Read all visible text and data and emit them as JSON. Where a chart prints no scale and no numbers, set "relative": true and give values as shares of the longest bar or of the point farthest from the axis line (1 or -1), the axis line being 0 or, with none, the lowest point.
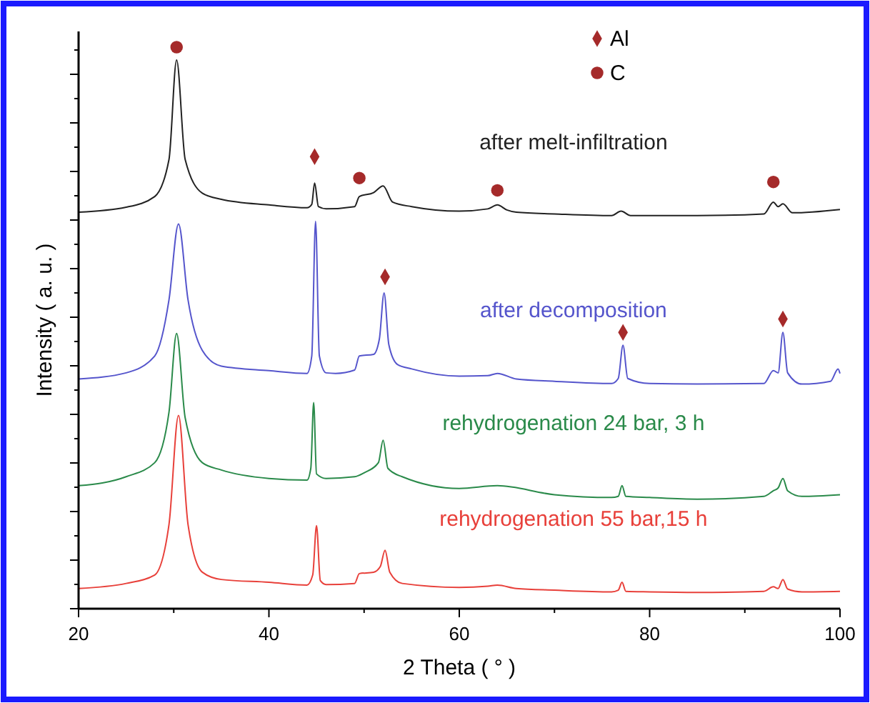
{
  "chart_data": {
    "type": "line",
    "relative": true,
    "xlabel": "2 Theta ( ° )",
    "ylabel": "Intensity ( a. u. )",
    "xlim": [
      20,
      100
    ],
    "xticks": [
      20,
      40,
      60,
      80,
      100
    ],
    "tick_labels": "x",
    "grid": false,
    "legend": "top right",
    "marker": "none",
    "line_style": "solid",
    "series": [
      {
        "name": "after melt-infiltration",
        "color": "#222222",
        "x": [
          20,
          25,
          28,
          29.5,
          30.3,
          31.2,
          33,
          35,
          40,
          44,
          44.5,
          44.8,
          45.2,
          46,
          49,
          49.5,
          51,
          52,
          53,
          55,
          60,
          63,
          64,
          65,
          66,
          70,
          76,
          77,
          78,
          85,
          92,
          93,
          93.5,
          94,
          95,
          100
        ],
        "values": [
          0.706,
          0.715,
          0.734,
          0.8,
          0.977,
          0.8,
          0.74,
          0.729,
          0.719,
          0.714,
          0.72,
          0.758,
          0.716,
          0.712,
          0.716,
          0.734,
          0.741,
          0.753,
          0.724,
          0.716,
          0.708,
          0.712,
          0.719,
          0.71,
          0.706,
          0.703,
          0.7,
          0.708,
          0.7,
          0.7,
          0.703,
          0.724,
          0.716,
          0.721,
          0.705,
          0.711
        ]
      },
      {
        "name": "after decomposition",
        "color": "#5555cc",
        "x": [
          20,
          25,
          28,
          29.5,
          30.5,
          31.5,
          33,
          35,
          40,
          44,
          44.5,
          44.9,
          45.3,
          46,
          47,
          49,
          49.5,
          51,
          51.6,
          52.1,
          52.6,
          53.5,
          55,
          60,
          63,
          64,
          66,
          70,
          76,
          76.7,
          77.2,
          77.7,
          80,
          85,
          92,
          93,
          93.5,
          94,
          94.5,
          96,
          99,
          99.8,
          100
        ],
        "values": [
          0.409,
          0.42,
          0.45,
          0.55,
          0.685,
          0.55,
          0.46,
          0.432,
          0.424,
          0.419,
          0.45,
          0.69,
          0.45,
          0.42,
          0.419,
          0.425,
          0.45,
          0.453,
          0.48,
          0.5625,
          0.47,
          0.435,
          0.427,
          0.414,
          0.415,
          0.419,
          0.409,
          0.405,
          0.401,
          0.41,
          0.469,
          0.41,
          0.401,
          0.4,
          0.401,
          0.424,
          0.42,
          0.492,
          0.42,
          0.4,
          0.405,
          0.427,
          0.419
        ]
      },
      {
        "name": "rehydrogenation 24 bar, 3 h",
        "color": "#2a8a4a",
        "x": [
          20,
          25,
          28,
          29.5,
          30.3,
          31.2,
          33,
          35,
          40,
          44,
          44.4,
          44.7,
          45,
          46,
          49,
          50,
          51.5,
          52,
          52.5,
          54,
          60,
          64,
          70,
          76,
          76.7,
          77.1,
          77.5,
          80,
          85,
          92,
          93,
          93.5,
          94,
          94.5,
          96,
          100
        ],
        "values": [
          0.219,
          0.235,
          0.26,
          0.35,
          0.49,
          0.34,
          0.26,
          0.247,
          0.232,
          0.229,
          0.25,
          0.367,
          0.24,
          0.232,
          0.235,
          0.242,
          0.26,
          0.3,
          0.25,
          0.235,
          0.214,
          0.219,
          0.203,
          0.198,
          0.2,
          0.219,
          0.2,
          0.198,
          0.195,
          0.2,
          0.21,
          0.215,
          0.232,
          0.21,
          0.2,
          0.203
        ]
      },
      {
        "name": "rehydrogenation 55 bar,15 h",
        "color": "#e8403a",
        "x": [
          20,
          25,
          28,
          29.5,
          30.5,
          31.5,
          33,
          35,
          40,
          44,
          44.6,
          45,
          45.4,
          46,
          49,
          49.5,
          51,
          51.7,
          52.2,
          52.7,
          54,
          60,
          63,
          64,
          66,
          70,
          76,
          76.7,
          77.1,
          77.5,
          80,
          85,
          92,
          93,
          93.5,
          94,
          94.5,
          96,
          100
        ],
        "values": [
          0.036,
          0.045,
          0.06,
          0.15,
          0.344,
          0.15,
          0.065,
          0.052,
          0.047,
          0.042,
          0.06,
          0.148,
          0.05,
          0.043,
          0.045,
          0.0625,
          0.065,
          0.075,
          0.104,
          0.065,
          0.045,
          0.038,
          0.04,
          0.042,
          0.036,
          0.033,
          0.03,
          0.033,
          0.047,
          0.031,
          0.03,
          0.029,
          0.031,
          0.039,
          0.036,
          0.052,
          0.035,
          0.03,
          0.031
        ]
      },
      {
        "name": "Al",
        "type": "scatter",
        "marker": "diamond",
        "color": "#a52a2a",
        "x": [
          44.8,
          52.2,
          77.2,
          94
        ],
        "values": [
          0.805,
          0.591,
          0.492,
          0.516
        ]
      },
      {
        "name": "C",
        "type": "scatter",
        "marker": "circle",
        "color": "#a52a2a",
        "x": [
          30.3,
          49.5,
          64,
          93
        ],
        "values": [
          1.0,
          0.767,
          0.745,
          0.76
        ]
      }
    ]
  }
}
